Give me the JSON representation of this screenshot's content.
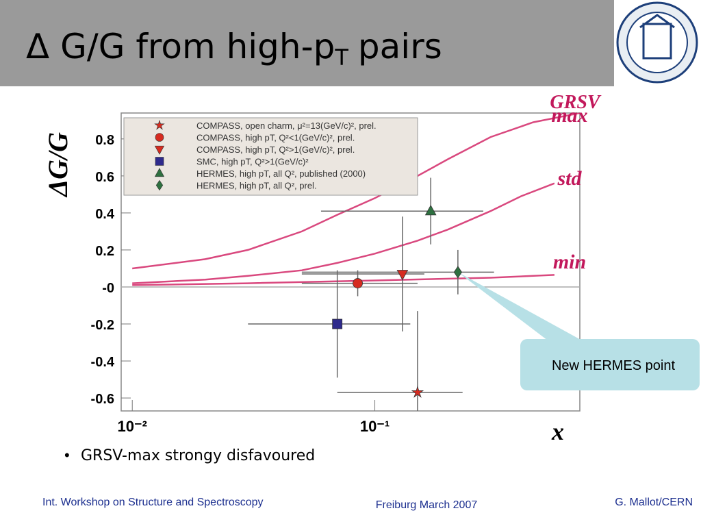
{
  "slide": {
    "title": [
      "Δ G/G from high-p",
      "T",
      "pairs"
    ],
    "bullets": [
      "GRSV-max strongy disfavoured"
    ],
    "footer": {
      "left": "Int. Workshop on Structure and Spectroscopy",
      "center": "Freiburg March 2007",
      "right": "G. Mallot/CERN"
    }
  },
  "chart_data": {
    "type": "scatter",
    "x_label": "x",
    "y_label": "ΔG/G",
    "x_log": true,
    "xlim": [
      0.009,
      0.7
    ],
    "ylim": [
      -0.67,
      0.94
    ],
    "xticks": [
      {
        "value": 0.01,
        "label": "10⁻²"
      },
      {
        "value": 0.1,
        "label": "10⁻¹"
      }
    ],
    "yticks": [
      -0.6,
      -0.4,
      -0.2,
      {
        "value": 0,
        "label": "-0"
      },
      0.2,
      0.4,
      0.6,
      0.8
    ],
    "series": [
      {
        "name": "COMPASS, open charm, μ²=13(GeV/c)², prel.",
        "marker": "star",
        "color": "#d62b20",
        "x": [
          0.15
        ],
        "values": [
          -0.57
        ],
        "yerr": [
          0.44
        ],
        "x_low": [
          0.07
        ],
        "x_high": [
          0.23
        ]
      },
      {
        "name": "COMPASS, high pT, Q²<1(GeV/c)², prel.",
        "marker": "circle",
        "color": "#d62b20",
        "x": [
          0.085
        ],
        "values": [
          0.02
        ],
        "yerr": [
          0.07
        ],
        "x_low": [
          0.05
        ],
        "x_high": [
          0.15
        ]
      },
      {
        "name": "COMPASS, high pT, Q²>1(GeV/c)², prel.",
        "marker": "triangle-down",
        "color": "#d62b20",
        "x": [
          0.13
        ],
        "values": [
          0.07
        ],
        "yerr": [
          0.31
        ],
        "x_low": [
          0.05
        ],
        "x_high": [
          0.16
        ]
      },
      {
        "name": "SMC, high pT, Q²>1(GeV/c)²",
        "marker": "square",
        "color": "#2e2a8c",
        "x": [
          0.07
        ],
        "values": [
          -0.2
        ],
        "yerr": [
          0.29
        ],
        "x_low": [
          0.03
        ],
        "x_high": [
          0.14
        ]
      },
      {
        "name": "HERMES, high pT, all Q², published (2000)",
        "marker": "triangle-up",
        "color": "#2e7040",
        "x": [
          0.17
        ],
        "values": [
          0.41
        ],
        "yerr": [
          0.18
        ],
        "x_low": [
          0.06
        ],
        "x_high": [
          0.28
        ]
      },
      {
        "name": "HERMES, high pT, all Q², prel.",
        "marker": "diamond",
        "color": "#2e7040",
        "x": [
          0.22
        ],
        "values": [
          0.08
        ],
        "yerr": [
          0.12
        ],
        "x_low": [
          0.05
        ],
        "x_high": [
          0.31
        ]
      }
    ],
    "curves_label": "GRSV",
    "curves": [
      {
        "name": "max",
        "color": "#d9487e",
        "x": [
          0.01,
          0.02,
          0.03,
          0.05,
          0.07,
          0.1,
          0.15,
          0.2,
          0.3,
          0.45,
          0.7
        ],
        "values": [
          0.1,
          0.15,
          0.2,
          0.3,
          0.39,
          0.48,
          0.6,
          0.69,
          0.81,
          0.89,
          0.94
        ]
      },
      {
        "name": "std",
        "color": "#d9487e",
        "x": [
          0.01,
          0.02,
          0.03,
          0.05,
          0.07,
          0.1,
          0.15,
          0.2,
          0.3,
          0.4,
          0.55
        ],
        "values": [
          0.02,
          0.04,
          0.06,
          0.09,
          0.13,
          0.18,
          0.25,
          0.31,
          0.41,
          0.49,
          0.56
        ]
      },
      {
        "name": "min",
        "color": "#d9487e",
        "x": [
          0.01,
          0.03,
          0.1,
          0.3,
          0.55
        ],
        "values": [
          0.01,
          0.02,
          0.035,
          0.05,
          0.065
        ]
      }
    ],
    "annotation": "New HERMES point"
  }
}
